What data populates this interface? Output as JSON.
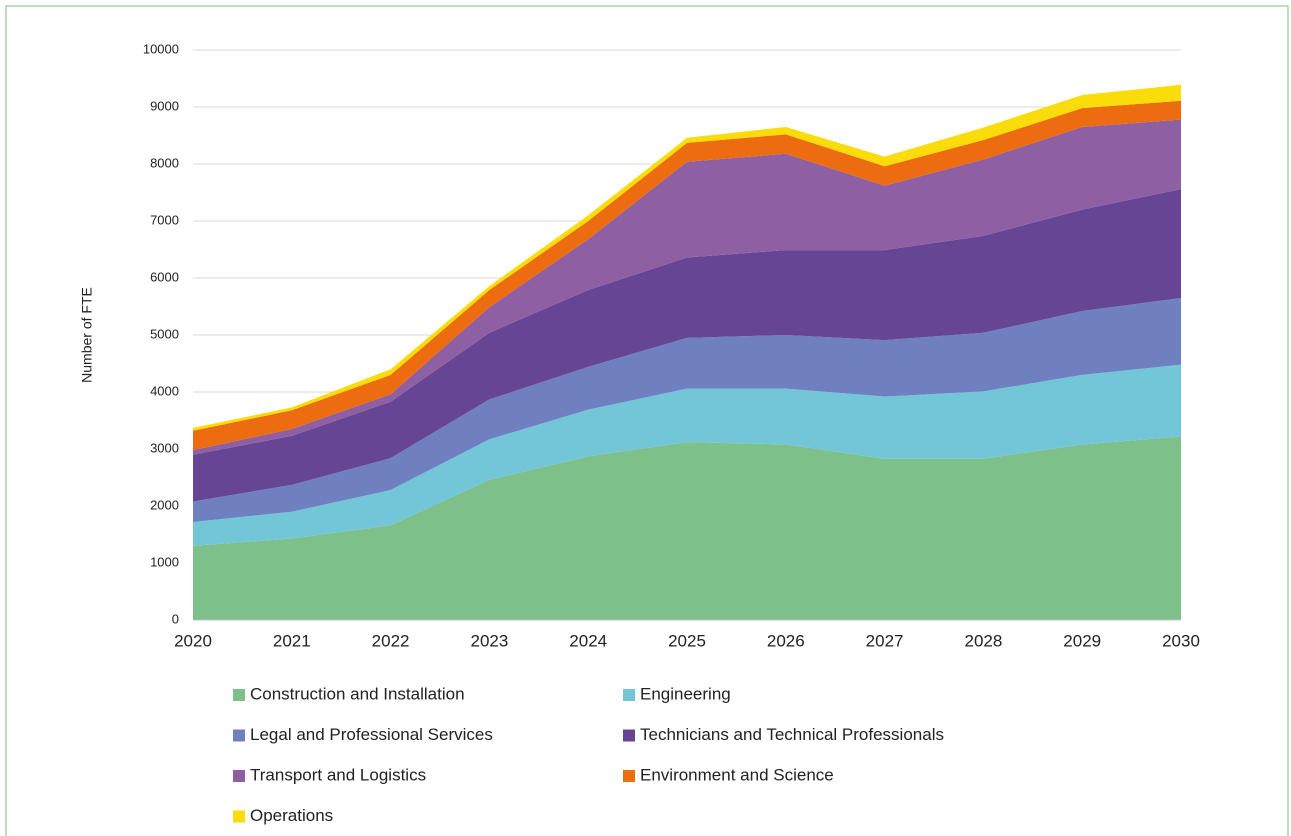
{
  "chart_data": {
    "type": "stacked_area",
    "y_label": "Number of FTE",
    "categories": [
      "2020",
      "2021",
      "2022",
      "2023",
      "2024",
      "2025",
      "2026",
      "2027",
      "2028",
      "2029",
      "2030"
    ],
    "ylim": [
      0,
      10000
    ],
    "yticks": [
      0,
      1000,
      2000,
      3000,
      4000,
      5000,
      6000,
      7000,
      8000,
      9000,
      10000
    ],
    "grid": true,
    "legend": "bottom",
    "series": [
      {
        "name": "Construction and Installation",
        "color": "#7dc08a",
        "values": [
          1300,
          1430,
          1660,
          2460,
          2870,
          3120,
          3080,
          2830,
          2830,
          3080,
          3220
        ]
      },
      {
        "name": "Engineering",
        "color": "#72c6d8",
        "values": [
          420,
          470,
          620,
          710,
          820,
          940,
          980,
          1090,
          1180,
          1220,
          1260
        ]
      },
      {
        "name": "Legal and Professional Services",
        "color": "#6f80c0",
        "values": [
          360,
          470,
          560,
          700,
          750,
          890,
          940,
          990,
          1030,
          1120,
          1170
        ]
      },
      {
        "name": "Technicians and Technical Professionals",
        "color": "#674595",
        "values": [
          820,
          860,
          990,
          1170,
          1350,
          1410,
          1490,
          1580,
          1700,
          1780,
          1910
        ]
      },
      {
        "name": "Transport and Logistics",
        "color": "#8f5fa3",
        "values": [
          80,
          120,
          130,
          450,
          890,
          1680,
          1690,
          1130,
          1340,
          1450,
          1220
        ]
      },
      {
        "name": "Environment and Science",
        "color": "#ec6c0f",
        "values": [
          340,
          330,
          340,
          300,
          320,
          330,
          340,
          340,
          340,
          330,
          330
        ]
      },
      {
        "name": "Operations",
        "color": "#f9dc0a",
        "values": [
          50,
          50,
          100,
          70,
          100,
          90,
          130,
          170,
          220,
          230,
          280
        ]
      }
    ]
  }
}
